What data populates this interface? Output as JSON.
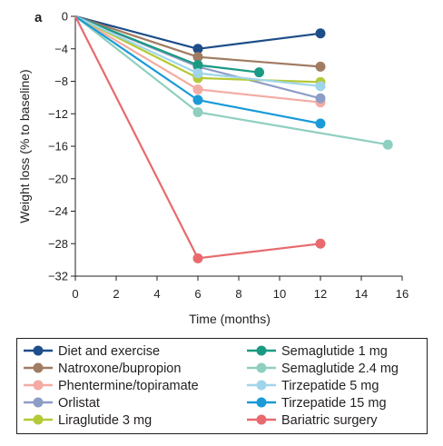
{
  "panel_label": "a",
  "chart_data": {
    "type": "line",
    "xlabel": "Time (months)",
    "ylabel": "Weight loss (% to baseline)",
    "xlim": [
      0,
      16
    ],
    "ylim": [
      -32,
      0
    ],
    "xticks": [
      "0",
      "2",
      "4",
      "6",
      "8",
      "10",
      "12",
      "14",
      "16"
    ],
    "yticks": [
      "0",
      "−4",
      "−8",
      "−12",
      "−16",
      "−20",
      "−24",
      "−28",
      "−32"
    ],
    "grid": false,
    "legend_position": "bottom",
    "series": [
      {
        "name": "Diet and exercise",
        "color": "#1d4e89",
        "x": [
          0,
          6,
          12
        ],
        "y": [
          0,
          -4.0,
          -2.1
        ]
      },
      {
        "name": "Natroxone/bupropion",
        "color": "#a07c62",
        "x": [
          0,
          6,
          12
        ],
        "y": [
          0,
          -5.0,
          -6.2
        ]
      },
      {
        "name": "Phentermine/topiramate",
        "color": "#f4aba4",
        "x": [
          0,
          6,
          12
        ],
        "y": [
          0,
          -9.0,
          -10.6
        ]
      },
      {
        "name": "Orlistat",
        "color": "#8d9dc6",
        "x": [
          0,
          6,
          12
        ],
        "y": [
          0,
          -6.2,
          -10.1
        ]
      },
      {
        "name": "Liraglutide 3 mg",
        "color": "#b5c936",
        "x": [
          0,
          6,
          12
        ],
        "y": [
          0,
          -7.6,
          -8.1
        ]
      },
      {
        "name": "Semaglutide 1 mg",
        "color": "#1a9a82",
        "x": [
          0,
          6,
          9
        ],
        "y": [
          0,
          -6.0,
          -6.9
        ]
      },
      {
        "name": "Semaglutide 2.4 mg",
        "color": "#8fcfbf",
        "x": [
          0,
          6,
          15.3
        ],
        "y": [
          0,
          -11.8,
          -15.8
        ]
      },
      {
        "name": "Tirzepatide 5 mg",
        "color": "#9fd5ea",
        "x": [
          0,
          6,
          12
        ],
        "y": [
          0,
          -7.0,
          -8.6
        ]
      },
      {
        "name": "Tirzepatide 15 mg",
        "color": "#1a9bd7",
        "x": [
          0,
          6,
          12
        ],
        "y": [
          0,
          -10.3,
          -13.2
        ]
      },
      {
        "name": "Bariatric surgery",
        "color": "#e86a6e",
        "x": [
          0,
          6,
          12
        ],
        "y": [
          0,
          -29.8,
          -28.0
        ]
      }
    ]
  }
}
